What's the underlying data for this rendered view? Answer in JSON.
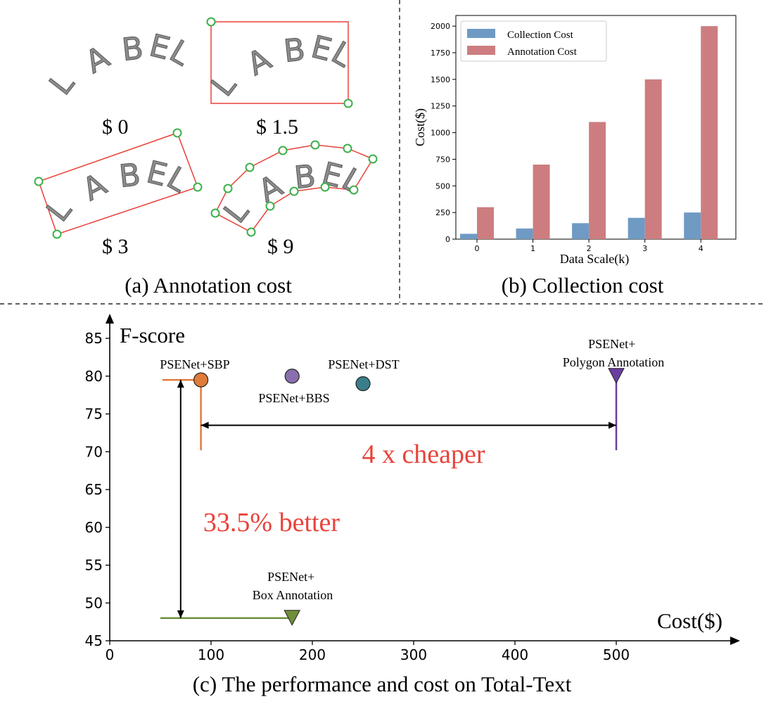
{
  "panel_a": {
    "caption": "(a) Annotation cost",
    "word": "LABEL",
    "cost_labels": [
      "$ 0",
      "$ 1.5",
      "$ 3",
      "$ 9"
    ],
    "colors": {
      "box": "#e8433a",
      "vertex": "#3cb04b"
    }
  },
  "panel_b": {
    "caption": "(b) Collection cost"
  },
  "panel_c": {
    "caption": "(c) The performance and cost on Total-Text",
    "ylabel": "F-score",
    "xlabel": "Cost($)",
    "annotation_cheaper": "4 x cheaper",
    "annotation_better": "33.5% better",
    "colors": {
      "annotation": "#e8433a",
      "sbp": "#e07b39",
      "bbs": "#8a6fae",
      "dst": "#3a7e8c",
      "polygon": "#6a3ea1",
      "box": "#6f8f3a"
    }
  },
  "chart_data": [
    {
      "type": "bar",
      "xlabel": "Data Scale(k)",
      "ylabel": "Cost($)",
      "categories": [
        "0",
        "1",
        "2",
        "3",
        "4"
      ],
      "ylim": [
        0,
        2100
      ],
      "yticks": [
        0,
        250,
        500,
        750,
        1000,
        1250,
        1500,
        1750,
        2000
      ],
      "legend_position": "top-left",
      "grid": false,
      "series": [
        {
          "name": "Collection Cost",
          "color": "#6f9ac4",
          "values": [
            50,
            100,
            150,
            200,
            250
          ]
        },
        {
          "name": "Annotation Cost",
          "color": "#cd7d7f",
          "values": [
            300,
            700,
            1100,
            1500,
            2000
          ]
        }
      ]
    },
    {
      "type": "scatter",
      "xlabel": "Cost($)",
      "ylabel": "F-score",
      "xlim": [
        0,
        620
      ],
      "ylim": [
        45,
        87
      ],
      "xticks": [
        0,
        100,
        200,
        300,
        400,
        500
      ],
      "yticks": [
        45,
        50,
        55,
        60,
        65,
        70,
        75,
        80,
        85
      ],
      "grid": false,
      "points": [
        {
          "label": "PSENet+SBP",
          "x": 90,
          "y": 79.5,
          "marker": "circle",
          "color": "#e07b39"
        },
        {
          "label": "PSENet+BBS",
          "x": 180,
          "y": 80,
          "marker": "circle",
          "color": "#8a6fae"
        },
        {
          "label": "PSENet+DST",
          "x": 250,
          "y": 79,
          "marker": "circle",
          "color": "#3a7e8c"
        },
        {
          "label": "PSENet+\nPolygon Annotation",
          "x": 500,
          "y": 80,
          "marker": "triangle",
          "color": "#6a3ea1"
        },
        {
          "label": "PSENet+\nBox Annotation",
          "x": 180,
          "y": 48,
          "marker": "triangle",
          "color": "#6f8f3a"
        }
      ]
    }
  ]
}
